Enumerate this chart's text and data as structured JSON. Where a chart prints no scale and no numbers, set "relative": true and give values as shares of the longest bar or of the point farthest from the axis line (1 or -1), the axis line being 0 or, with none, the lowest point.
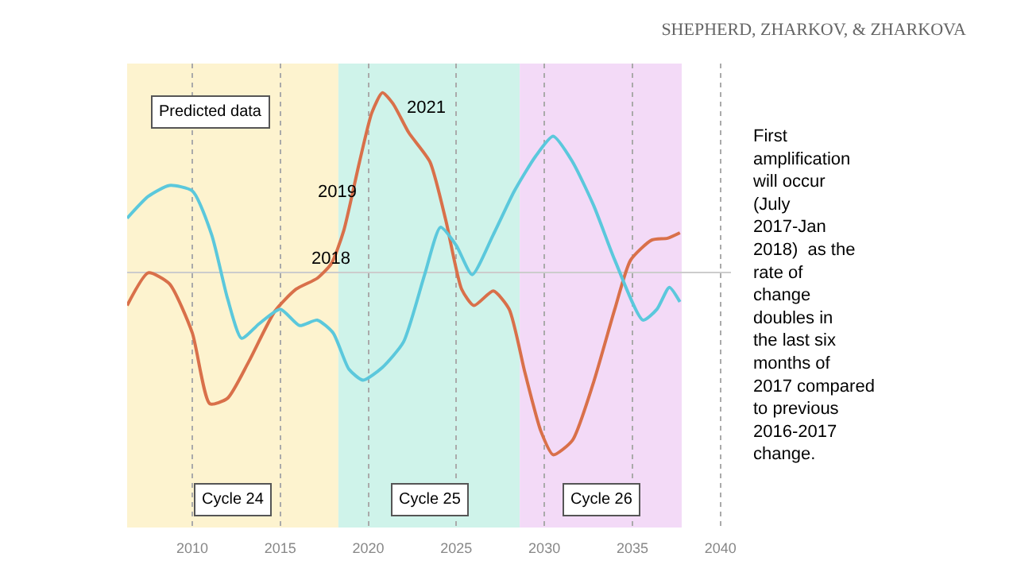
{
  "chart_data": {
    "type": "line",
    "title": "SHEPHERD, ZHARKOV, & ZHARKOVA",
    "relative": true,
    "grid": "x",
    "marker": "none",
    "line_style": "solid",
    "xlim": [
      2006.3,
      2040.6
    ],
    "xticks": [
      2010,
      2015,
      2020,
      2025,
      2030,
      2035,
      2040
    ],
    "series": [
      {
        "color": "#d9704a",
        "x": [
          2006.3,
          2007.5,
          2008.7,
          2010.0,
          2011.0,
          2012.0,
          2013.2,
          2014.7,
          2015.9,
          2017.1,
          2017.9,
          2018.6,
          2019.5,
          2020.2,
          2020.8,
          2021.4,
          2022.3,
          2023.5,
          2024.4,
          2025.3,
          2026.0,
          2027.1,
          2028.0,
          2028.9,
          2029.8,
          2030.5,
          2031.6,
          2032.8,
          2034.0,
          2034.9,
          2036.1,
          2037.0,
          2037.7
        ],
        "values": [
          -0.18,
          0.0,
          -0.06,
          -0.33,
          -0.72,
          -0.69,
          -0.49,
          -0.21,
          -0.09,
          -0.03,
          0.05,
          0.23,
          0.61,
          0.88,
          0.99,
          0.93,
          0.77,
          0.61,
          0.29,
          -0.09,
          -0.18,
          -0.1,
          -0.2,
          -0.55,
          -0.87,
          -1.0,
          -0.92,
          -0.6,
          -0.2,
          0.07,
          0.18,
          0.19,
          0.22
        ]
      },
      {
        "color": "#5bc8dc",
        "x": [
          2006.3,
          2007.5,
          2008.7,
          2010.0,
          2011.1,
          2012.0,
          2012.8,
          2013.8,
          2015.0,
          2016.1,
          2017.1,
          2018.0,
          2018.9,
          2019.7,
          2020.8,
          2022.0,
          2023.2,
          2024.1,
          2025.0,
          2025.9,
          2027.1,
          2028.3,
          2029.5,
          2030.5,
          2031.6,
          2032.8,
          2034.0,
          2035.6,
          2036.4,
          2037.1,
          2037.7
        ],
        "values": [
          0.3,
          0.42,
          0.48,
          0.45,
          0.21,
          -0.14,
          -0.36,
          -0.28,
          -0.2,
          -0.29,
          -0.26,
          -0.33,
          -0.53,
          -0.59,
          -0.52,
          -0.38,
          -0.01,
          0.25,
          0.15,
          -0.01,
          0.21,
          0.45,
          0.64,
          0.75,
          0.61,
          0.37,
          0.07,
          -0.26,
          -0.2,
          -0.08,
          -0.16
        ]
      }
    ],
    "bands": [
      {
        "axis": "x",
        "from": 2006.3,
        "to": 2018.3,
        "label": "Cycle 24",
        "color": "#fdf3cf"
      },
      {
        "axis": "x",
        "from": 2018.3,
        "to": 2028.6,
        "label": "Cycle 25",
        "color": "#cff3ea"
      },
      {
        "axis": "x",
        "from": 2028.6,
        "to": 2037.8,
        "label": "Cycle 26",
        "color": "#f3daf7"
      }
    ],
    "annotations": [
      "Predicted data",
      "2018",
      "2019",
      "2021",
      "First amplification will occur (July 2017-Jan 2018)  as the rate of change doubles in the last six months of 2017 compared to previous 2016-2017 change."
    ]
  }
}
